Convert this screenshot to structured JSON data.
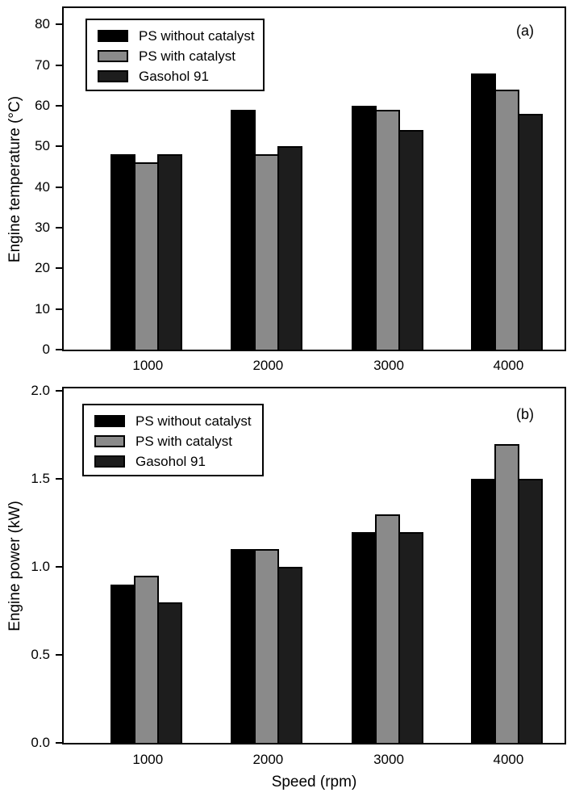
{
  "figure": {
    "background": "#ffffff",
    "frame_color": "#000000",
    "bar_border_color": "#000000"
  },
  "chart_data": [
    {
      "type": "bar",
      "panel_label": "(a)",
      "ylabel": "Engine temperature (°C)",
      "categories": [
        "1000",
        "2000",
        "3000",
        "4000"
      ],
      "series": [
        {
          "name": "PS without catalyst",
          "color": "#000000",
          "values": [
            48,
            59,
            60,
            68
          ]
        },
        {
          "name": "PS with catalyst",
          "color": "#8a8a8a",
          "values": [
            46,
            48,
            59,
            64
          ]
        },
        {
          "name": "Gasohol 91",
          "color": "#1d1d1d",
          "values": [
            48,
            50,
            54,
            58
          ]
        }
      ],
      "ylim": [
        0,
        80
      ],
      "yticks": [
        "0",
        "10",
        "20",
        "30",
        "40",
        "50",
        "60",
        "70",
        "80"
      ],
      "legend_position": "top-left",
      "grid": false
    },
    {
      "type": "bar",
      "panel_label": "(b)",
      "xlabel": "Speed (rpm)",
      "ylabel": "Engine power (kW)",
      "categories": [
        "1000",
        "2000",
        "3000",
        "4000"
      ],
      "series": [
        {
          "name": "PS without catalyst",
          "color": "#000000",
          "values": [
            0.9,
            1.1,
            1.2,
            1.5
          ]
        },
        {
          "name": "PS with catalyst",
          "color": "#8a8a8a",
          "values": [
            0.95,
            1.1,
            1.3,
            1.7
          ]
        },
        {
          "name": "Gasohol 91",
          "color": "#1d1d1d",
          "values": [
            0.8,
            1.0,
            1.2,
            1.5
          ]
        }
      ],
      "ylim": [
        0.0,
        2.0
      ],
      "yticks": [
        "0.0",
        "0.5",
        "1.0",
        "1.5",
        "2.0"
      ],
      "legend_position": "top-left",
      "grid": false
    }
  ]
}
